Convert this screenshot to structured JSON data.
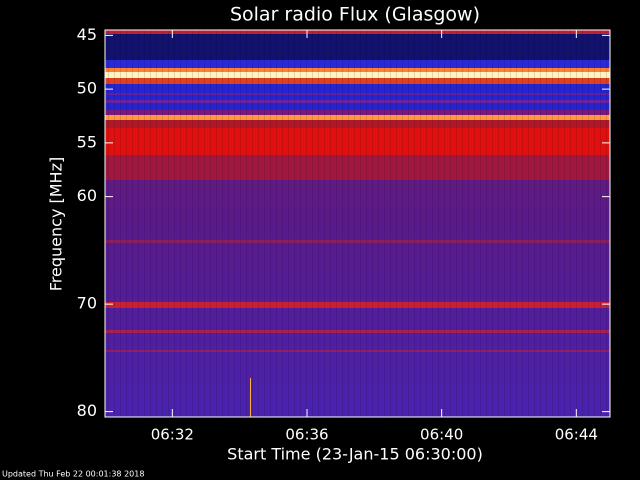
{
  "chart_data": {
    "type": "spectrogram",
    "title": "Solar radio Flux (Glasgow)",
    "y_label": "Frequency [MHz]",
    "x_label": "Start Time (23-Jan-15 06:30:00)",
    "footer": "Updated Thu Feb 22 00:01:38 2018",
    "xlim": [
      "06:30",
      "06:45"
    ],
    "xticks": [
      "06:32",
      "06:36",
      "06:40",
      "06:44"
    ],
    "ylim": [
      44.5,
      80.5
    ],
    "y_inverted": true,
    "yticks": [
      45,
      50,
      55,
      60,
      70,
      80
    ]
  }
}
